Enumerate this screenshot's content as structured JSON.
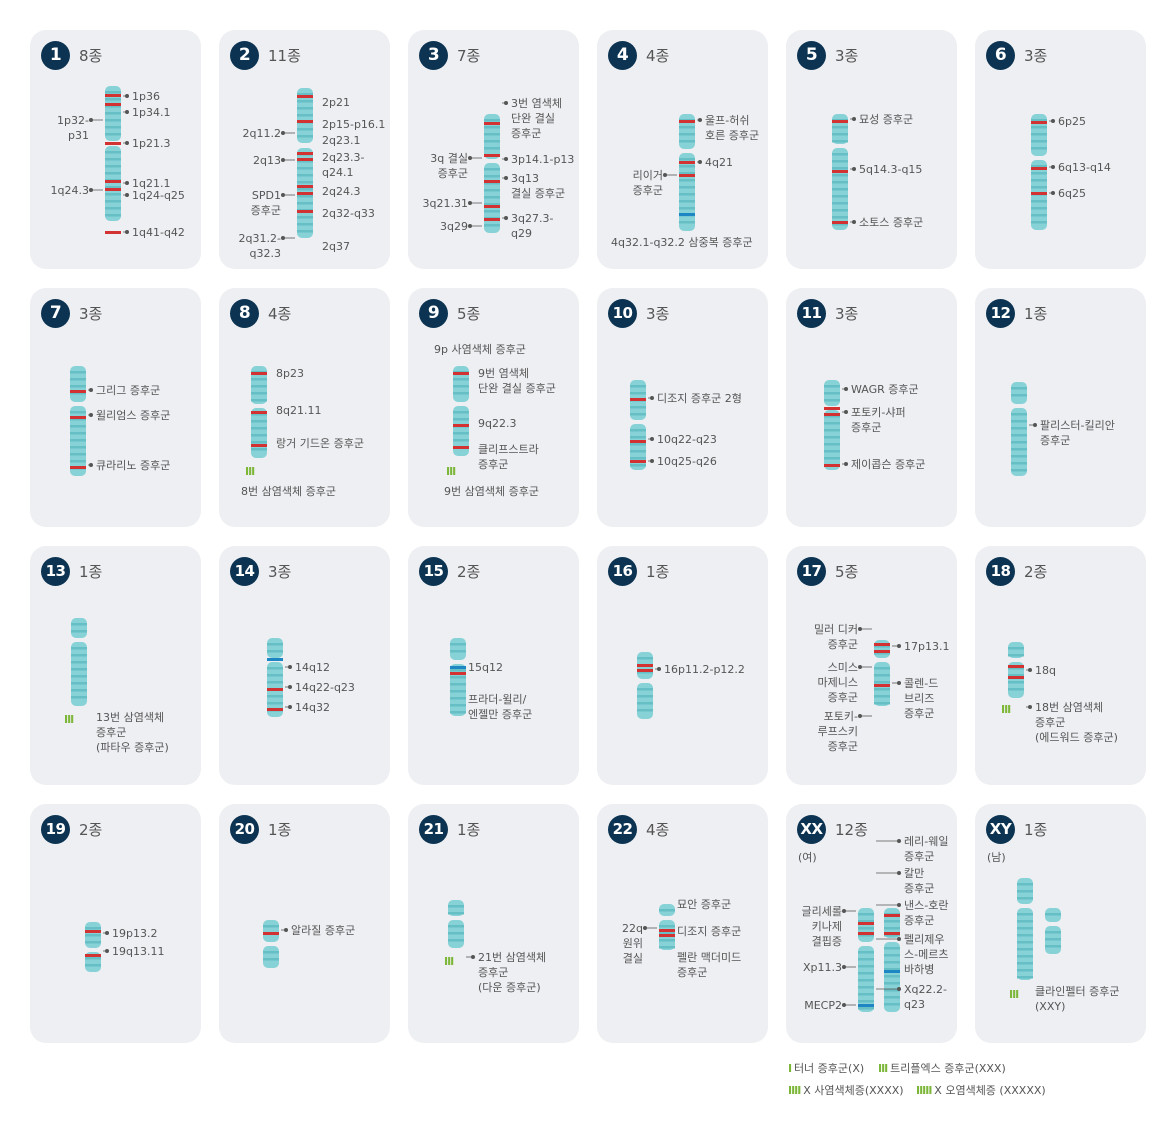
{
  "colors": {
    "card": "#eeeff2",
    "badge": "#0c3452",
    "chrom": "#86d2d6",
    "band": "#66bfc5",
    "red": "#d23232",
    "blue": "#1f86c4",
    "green": "#7cb73a"
  },
  "cards": [
    {
      "num": "1",
      "count": "8종",
      "chrom": [
        {
          "y": 56,
          "h": 55
        },
        {
          "y": 116,
          "h": 75
        }
      ],
      "bands": [
        {
          "y": 64,
          "c": "red"
        },
        {
          "y": 73,
          "c": "red"
        },
        {
          "y": 112,
          "c": "red"
        },
        {
          "y": 150,
          "c": "red"
        },
        {
          "y": 158,
          "c": "red"
        },
        {
          "y": 201,
          "c": "red"
        }
      ],
      "labels": [
        {
          "t": "1p36",
          "x": 102,
          "y": 59
        },
        {
          "t": "1p34.1",
          "x": 102,
          "y": 75
        },
        {
          "t": "1p32-\np31",
          "x": 18,
          "y": 83,
          "r": 1
        },
        {
          "t": "1p21.3",
          "x": 102,
          "y": 106
        },
        {
          "t": "1q24.3",
          "x": 12,
          "y": 153,
          "r": 1
        },
        {
          "t": "1q21.1",
          "x": 102,
          "y": 146
        },
        {
          "t": "1q24-q25",
          "x": 102,
          "y": 158
        },
        {
          "t": "1q41-q42",
          "x": 102,
          "y": 195
        }
      ]
    },
    {
      "num": "2",
      "count": "11종",
      "chrom": [
        {
          "y": 58,
          "h": 55
        },
        {
          "y": 118,
          "h": 90
        }
      ],
      "bands": [
        {
          "y": 65,
          "c": "red"
        },
        {
          "y": 90,
          "c": "red"
        },
        {
          "y": 122,
          "c": "red"
        },
        {
          "y": 128,
          "c": "red"
        },
        {
          "y": 155,
          "c": "red"
        },
        {
          "y": 162,
          "c": "red"
        },
        {
          "y": 180,
          "c": "red"
        }
      ],
      "labels": [
        {
          "t": "2p21",
          "x": 103,
          "y": 65
        },
        {
          "t": "2p15-p16.1",
          "x": 103,
          "y": 87
        },
        {
          "t": "2q11.2",
          "x": 16,
          "y": 96,
          "r": 1
        },
        {
          "t": "2q23.1",
          "x": 103,
          "y": 103
        },
        {
          "t": "2q13",
          "x": 16,
          "y": 123,
          "r": 1
        },
        {
          "t": "2q23.3-\nq24.1",
          "x": 103,
          "y": 120
        },
        {
          "t": "SPD1\n증후군",
          "x": 14,
          "y": 158,
          "r": 1
        },
        {
          "t": "2q24.3",
          "x": 103,
          "y": 154
        },
        {
          "t": "2q32-q33",
          "x": 103,
          "y": 176
        },
        {
          "t": "2q31.2-\nq32.3",
          "x": 10,
          "y": 201,
          "r": 1
        },
        {
          "t": "2q37",
          "x": 103,
          "y": 209
        }
      ]
    },
    {
      "num": "3",
      "count": "7종",
      "chrom": [
        {
          "y": 84,
          "h": 45
        },
        {
          "y": 133,
          "h": 70
        }
      ],
      "bands": [
        {
          "y": 92,
          "c": "red"
        },
        {
          "y": 124,
          "c": "red"
        },
        {
          "y": 150,
          "c": "red"
        },
        {
          "y": 175,
          "c": "red"
        },
        {
          "y": 188,
          "c": "red"
        }
      ],
      "labels": [
        {
          "t": "3번 염색체\n단완 결실\n증후군",
          "x": 103,
          "y": 66
        },
        {
          "t": "3q 결실\n증후군",
          "x": 8,
          "y": 121,
          "r": 1
        },
        {
          "t": "3p14.1-p13",
          "x": 103,
          "y": 122
        },
        {
          "t": "3q13\n결실 증후군",
          "x": 103,
          "y": 141
        },
        {
          "t": "3q21.31",
          "x": 10,
          "y": 166,
          "r": 1
        },
        {
          "t": "3q27.3-\nq29",
          "x": 103,
          "y": 181
        },
        {
          "t": "3q29",
          "x": 10,
          "y": 189,
          "r": 1
        }
      ]
    },
    {
      "num": "4",
      "count": "4종",
      "chrom": [
        {
          "y": 84,
          "h": 35
        },
        {
          "y": 123,
          "h": 78
        }
      ],
      "bands": [
        {
          "y": 90,
          "c": "red"
        },
        {
          "y": 131,
          "c": "red"
        },
        {
          "y": 144,
          "c": "red"
        },
        {
          "y": 183,
          "c": "blue"
        }
      ],
      "labels": [
        {
          "t": "울프-허쉬\n호른 증후군",
          "x": 108,
          "y": 83
        },
        {
          "t": "4q21",
          "x": 108,
          "y": 125
        },
        {
          "t": "리이거\n증후군",
          "x": 10,
          "y": 138,
          "r": 1
        },
        {
          "t": "4q32.1-q32.2 삼중복 증후군",
          "x": 14,
          "y": 205
        }
      ]
    },
    {
      "num": "5",
      "count": "3종",
      "chrom": [
        {
          "y": 84,
          "h": 30
        },
        {
          "y": 118,
          "h": 82
        }
      ],
      "bands": [
        {
          "y": 90,
          "c": "red"
        },
        {
          "y": 140,
          "c": "red"
        },
        {
          "y": 191,
          "c": "red"
        }
      ],
      "labels": [
        {
          "t": "묘성 증후군",
          "x": 73,
          "y": 82
        },
        {
          "t": "5q14.3-q15",
          "x": 73,
          "y": 132
        },
        {
          "t": "소토스 증후군",
          "x": 73,
          "y": 185
        }
      ]
    },
    {
      "num": "6",
      "count": "3종",
      "chrom": [
        {
          "y": 84,
          "h": 42
        },
        {
          "y": 130,
          "h": 70
        }
      ],
      "bands": [
        {
          "y": 91,
          "c": "red"
        },
        {
          "y": 137,
          "c": "red"
        },
        {
          "y": 162,
          "c": "red"
        }
      ],
      "labels": [
        {
          "t": "6p25",
          "x": 83,
          "y": 84
        },
        {
          "t": "6q13-q14",
          "x": 83,
          "y": 130
        },
        {
          "t": "6q25",
          "x": 83,
          "y": 156
        }
      ]
    },
    {
      "num": "7",
      "count": "3종",
      "chrom": [
        {
          "y": 78,
          "h": 36
        },
        {
          "y": 118,
          "h": 70
        }
      ],
      "bands": [
        {
          "y": 102,
          "c": "red"
        },
        {
          "y": 128,
          "c": "red"
        },
        {
          "y": 178,
          "c": "red"
        }
      ],
      "labels": [
        {
          "t": "그리그 증후군",
          "x": 66,
          "y": 95
        },
        {
          "t": "윌리엄스 증후군",
          "x": 66,
          "y": 120
        },
        {
          "t": "큐라리노 증후군",
          "x": 66,
          "y": 170
        }
      ]
    },
    {
      "num": "8",
      "count": "4종",
      "chrom": [
        {
          "y": 78,
          "h": 38
        },
        {
          "y": 120,
          "h": 50
        }
      ],
      "bands": [
        {
          "y": 84,
          "c": "red"
        },
        {
          "y": 123,
          "c": "red"
        },
        {
          "y": 156,
          "c": "red"
        }
      ],
      "tri": {
        "x": 26,
        "y": 176,
        "t": "III"
      },
      "labels": [
        {
          "t": "8p23",
          "x": 57,
          "y": 78
        },
        {
          "t": "8q21.11",
          "x": 57,
          "y": 115
        },
        {
          "t": "랑거 기드온 증후군",
          "x": 57,
          "y": 148
        },
        {
          "t": "8번 삼염색체 증후군",
          "x": 22,
          "y": 196
        }
      ]
    },
    {
      "num": "9",
      "count": "5종",
      "chrom": [
        {
          "y": 78,
          "h": 36
        },
        {
          "y": 118,
          "h": 50
        }
      ],
      "bands": [
        {
          "y": 84,
          "c": "red"
        },
        {
          "y": 136,
          "c": "red"
        },
        {
          "y": 158,
          "c": "red"
        }
      ],
      "tri": {
        "x": 38,
        "y": 176,
        "t": "III"
      },
      "labels": [
        {
          "t": "9p 사염색체 증후군",
          "x": 26,
          "y": 54
        },
        {
          "t": "9번 염색체\n단완 결실 증후군",
          "x": 70,
          "y": 78
        },
        {
          "t": "9q22.3",
          "x": 70,
          "y": 128
        },
        {
          "t": "클리프스트라\n증후군",
          "x": 70,
          "y": 154
        },
        {
          "t": "9번 삼염색체 증후군",
          "x": 36,
          "y": 196
        }
      ]
    },
    {
      "num": "10",
      "count": "3종",
      "chrom": [
        {
          "y": 92,
          "h": 40
        },
        {
          "y": 136,
          "h": 46
        }
      ],
      "bands": [
        {
          "y": 110,
          "c": "red"
        },
        {
          "y": 152,
          "c": "red"
        },
        {
          "y": 172,
          "c": "red"
        }
      ],
      "labels": [
        {
          "t": "디조지 증후군 2형",
          "x": 60,
          "y": 103
        },
        {
          "t": "10q22-q23",
          "x": 60,
          "y": 144
        },
        {
          "t": "10q25-q26",
          "x": 60,
          "y": 166
        }
      ]
    },
    {
      "num": "11",
      "count": "3종",
      "chrom": [
        {
          "y": 92,
          "h": 26
        },
        {
          "y": 122,
          "h": 60
        }
      ],
      "bands": [
        {
          "y": 119,
          "c": "red"
        },
        {
          "y": 125,
          "c": "red"
        },
        {
          "y": 176,
          "c": "red"
        }
      ],
      "labels": [
        {
          "t": "WAGR 증후군",
          "x": 65,
          "y": 94
        },
        {
          "t": "포토키-샤퍼\n증후군",
          "x": 65,
          "y": 117
        },
        {
          "t": "제이콥슨 증후군",
          "x": 65,
          "y": 169
        }
      ]
    },
    {
      "num": "12",
      "count": "1종",
      "chrom": [
        {
          "y": 94,
          "h": 22
        },
        {
          "y": 120,
          "h": 68
        }
      ],
      "bands": [],
      "labels": [
        {
          "t": "팔리스터-킬리안\n증후군",
          "x": 65,
          "y": 130
        }
      ]
    },
    {
      "num": "13",
      "count": "1종",
      "chrom": [
        {
          "y": 72,
          "h": 20
        },
        {
          "y": 96,
          "h": 64
        }
      ],
      "bands": [],
      "tri": {
        "x": 34,
        "y": 166,
        "t": "III"
      },
      "labels": [
        {
          "t": "13번 삼염색체\n증후군\n(파타우 증후군)",
          "x": 66,
          "y": 164
        }
      ]
    },
    {
      "num": "14",
      "count": "3종",
      "chrom": [
        {
          "y": 92,
          "h": 20
        },
        {
          "y": 116,
          "h": 55
        }
      ],
      "bands": [
        {
          "y": 112,
          "c": "blue"
        },
        {
          "y": 142,
          "c": "red"
        },
        {
          "y": 162,
          "c": "red"
        }
      ],
      "labels": [
        {
          "t": "14q12",
          "x": 76,
          "y": 114
        },
        {
          "t": "14q22-q23",
          "x": 76,
          "y": 134
        },
        {
          "t": "14q32",
          "x": 76,
          "y": 154
        }
      ]
    },
    {
      "num": "15",
      "count": "2종",
      "chrom": [
        {
          "y": 92,
          "h": 22
        },
        {
          "y": 118,
          "h": 52
        }
      ],
      "bands": [
        {
          "y": 120,
          "c": "blue"
        },
        {
          "y": 126,
          "c": "red"
        }
      ],
      "labels": [
        {
          "t": "15q12",
          "x": 60,
          "y": 114
        },
        {
          "t": "프라더-윌리/\n엔젤만 증후군",
          "x": 60,
          "y": 146
        }
      ]
    },
    {
      "num": "16",
      "count": "1종",
      "chrom": [
        {
          "y": 106,
          "h": 27
        },
        {
          "y": 137,
          "h": 36
        }
      ],
      "bands": [
        {
          "y": 118,
          "c": "red"
        },
        {
          "y": 123,
          "c": "red"
        }
      ],
      "labels": [
        {
          "t": "16p11.2-p12.2",
          "x": 67,
          "y": 116
        }
      ]
    },
    {
      "num": "17",
      "count": "5종",
      "chrom": [
        {
          "y": 94,
          "h": 18
        },
        {
          "y": 116,
          "h": 44
        }
      ],
      "bands": [
        {
          "y": 97,
          "c": "red"
        },
        {
          "y": 104,
          "c": "red"
        },
        {
          "y": 138,
          "c": "red"
        }
      ],
      "labels": [
        {
          "t": "밀러 디커\n증후군",
          "x": 12,
          "y": 76,
          "r": 1
        },
        {
          "t": "17p13.1",
          "x": 118,
          "y": 93
        },
        {
          "t": "스미스\n마제니스\n증후군",
          "x": 10,
          "y": 114,
          "r": 1
        },
        {
          "t": "콜렌-드\n브리즈\n증후군",
          "x": 118,
          "y": 130
        },
        {
          "t": "포토키-\n루프스키\n증후군",
          "x": 10,
          "y": 163,
          "r": 1
        }
      ]
    },
    {
      "num": "18",
      "count": "2종",
      "chrom": [
        {
          "y": 96,
          "h": 16
        },
        {
          "y": 116,
          "h": 36
        }
      ],
      "bands": [
        {
          "y": 119,
          "c": "red"
        },
        {
          "y": 130,
          "c": "red"
        }
      ],
      "tri": {
        "x": 26,
        "y": 156,
        "t": "III"
      },
      "labels": [
        {
          "t": "18q",
          "x": 60,
          "y": 117
        },
        {
          "t": "18번 삼염색체\n증후군\n(에드워드 증후군)",
          "x": 60,
          "y": 154
        }
      ]
    },
    {
      "num": "19",
      "count": "2종",
      "chrom": [
        {
          "y": 118,
          "h": 26
        },
        {
          "y": 148,
          "h": 20
        }
      ],
      "bands": [
        {
          "y": 126,
          "c": "red"
        },
        {
          "y": 150,
          "c": "red"
        }
      ],
      "labels": [
        {
          "t": "19p13.2",
          "x": 82,
          "y": 122
        },
        {
          "t": "19q13.11",
          "x": 82,
          "y": 140
        }
      ]
    },
    {
      "num": "20",
      "count": "1종",
      "chrom": [
        {
          "y": 116,
          "h": 22
        },
        {
          "y": 142,
          "h": 22
        }
      ],
      "bands": [
        {
          "y": 128,
          "c": "red"
        }
      ],
      "labels": [
        {
          "t": "알라질 증후군",
          "x": 72,
          "y": 119
        }
      ]
    },
    {
      "num": "21",
      "count": "1종",
      "chrom": [
        {
          "y": 96,
          "h": 16
        },
        {
          "y": 116,
          "h": 28
        }
      ],
      "bands": [],
      "tri": {
        "x": 36,
        "y": 150,
        "t": "III"
      },
      "labels": [
        {
          "t": "21번 삼염색체\n증후군\n(다운 증후군)",
          "x": 70,
          "y": 146
        }
      ]
    },
    {
      "num": "22",
      "count": "4종",
      "chrom": [
        {
          "y": 100,
          "h": 12
        },
        {
          "y": 116,
          "h": 30
        }
      ],
      "bands": [
        {
          "y": 125,
          "c": "red"
        },
        {
          "y": 130,
          "c": "red"
        }
      ],
      "labels": [
        {
          "t": "묘안 증후군",
          "x": 80,
          "y": 93
        },
        {
          "t": "22q\n원위\n결실",
          "x": 14,
          "y": 117,
          "r": 1
        },
        {
          "t": "디조지 증후군",
          "x": 80,
          "y": 120
        },
        {
          "t": "펠란 맥더미드\n증후군",
          "x": 80,
          "y": 146
        }
      ]
    },
    {
      "num": "XX",
      "count": "12종",
      "sub": "(여)",
      "chrom": [
        {
          "y": 104,
          "h": 34
        },
        {
          "y": 142,
          "h": 66
        }
      ],
      "bands": [
        {
          "y": 118,
          "c": "red"
        },
        {
          "y": 128,
          "c": "red"
        },
        {
          "y": 200,
          "c": "blue"
        }
      ],
      "labels": [
        {
          "t": "레리-웨일\n증후군",
          "x": 118,
          "y": 30
        },
        {
          "t": "칼만\n증후군",
          "x": 118,
          "y": 62
        },
        {
          "t": "글리세롤\n키나제\n결핍증",
          "x": 4,
          "y": 100,
          "r": 1
        },
        {
          "t": "낸스-호란\n증후군",
          "x": 118,
          "y": 94
        },
        {
          "t": "펠리제우\n스-메르츠\n바하병",
          "x": 118,
          "y": 128
        },
        {
          "t": "Xp11.3",
          "x": 6,
          "y": 156,
          "r": 1
        },
        {
          "t": "Xq22.2-\nq23",
          "x": 118,
          "y": 178
        },
        {
          "t": "MECP2",
          "x": 6,
          "y": 194,
          "r": 1
        }
      ]
    },
    {
      "num": "XY",
      "count": "1종",
      "sub": "(남)",
      "chrom": [
        {
          "y": 74,
          "h": 26
        },
        {
          "y": 104,
          "h": 72
        }
      ],
      "bands": [],
      "tri": {
        "x": 34,
        "y": 183,
        "t": "III"
      },
      "labels": [
        {
          "t": "클라인펠터 증후군\n(XXY)",
          "x": 60,
          "y": 180
        }
      ]
    }
  ],
  "legend": [
    {
      "icon": "I",
      "text": "터너 증후군(X)"
    },
    {
      "icon": "III",
      "text": "트리플엑스 증후군(XXX)"
    },
    {
      "icon": "IIII",
      "text": "X 사염색체증(XXXX)"
    },
    {
      "icon": "IIIII",
      "text": "X 오염색체증 (XXXXX)"
    }
  ]
}
